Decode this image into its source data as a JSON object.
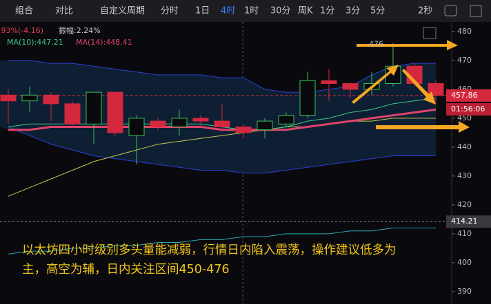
{
  "toolbar": {
    "items": [
      "组合",
      "对比",
      "自定义周期",
      "分时",
      "1日",
      "4时",
      "1时",
      "30分",
      "周K",
      "1分",
      "3分",
      "5分"
    ],
    "active": 5,
    "interval": "2秒"
  },
  "indicators": {
    "change": ".93%(-4.16)",
    "amplitude": "振幅:2.24%",
    "ma10": "MA(10):447.21",
    "ma14": "MA(14):448.41"
  },
  "annotation": [
    "以太坊四小时级别多头量能减弱，行情日内陷入震荡，操作建议低多为",
    "主，高空为辅，日内关注区间450-476"
  ],
  "chart_data": {
    "type": "candlestick",
    "candles": [
      {
        "open": 458,
        "close": 456,
        "high": 460,
        "low": 448
      },
      {
        "open": 456,
        "close": 458,
        "high": 461,
        "low": 452
      },
      {
        "open": 458,
        "close": 455,
        "high": 459,
        "low": 449
      },
      {
        "open": 455,
        "close": 448,
        "high": 456,
        "low": 447
      },
      {
        "open": 448,
        "close": 459,
        "high": 459,
        "low": 441
      },
      {
        "open": 459,
        "close": 445,
        "high": 459,
        "low": 444
      },
      {
        "open": 444,
        "close": 450,
        "high": 451,
        "low": 434
      },
      {
        "open": 449,
        "close": 447,
        "high": 450,
        "low": 446
      },
      {
        "open": 447,
        "close": 450,
        "high": 453,
        "low": 444
      },
      {
        "open": 450,
        "close": 449,
        "high": 451,
        "low": 447
      },
      {
        "open": 449,
        "close": 447,
        "high": 455,
        "low": 446
      },
      {
        "open": 447,
        "close": 445,
        "high": 448,
        "low": 443
      },
      {
        "open": 446,
        "close": 449,
        "high": 450,
        "low": 443
      },
      {
        "open": 448,
        "close": 451,
        "high": 452,
        "low": 447
      },
      {
        "open": 451,
        "close": 463,
        "high": 466,
        "low": 450
      },
      {
        "open": 463,
        "close": 462,
        "high": 467,
        "low": 456
      },
      {
        "open": 462,
        "close": 460,
        "high": 462,
        "low": 457
      },
      {
        "open": 460,
        "close": 462,
        "high": 466,
        "low": 458
      },
      {
        "open": 462,
        "close": 468,
        "high": 476,
        "low": 461
      },
      {
        "open": 468,
        "close": 462,
        "high": 469,
        "low": 461
      },
      {
        "open": 462,
        "close": 457.86,
        "high": 463,
        "low": 455
      }
    ],
    "up_color": "#3cc35a",
    "down_color": "#d4283e",
    "band": {
      "color": "#2b3fd6",
      "fill": "#0e1f33",
      "upper": [
        470,
        470,
        469,
        469,
        468,
        467,
        466,
        465,
        465,
        465,
        464,
        464,
        460,
        459,
        459,
        460,
        461,
        465,
        468,
        469,
        469
      ],
      "lower": [
        447,
        444,
        441,
        439,
        437,
        436,
        435,
        434,
        433,
        432,
        432,
        431,
        431,
        432,
        433,
        434,
        435,
        436,
        437,
        437,
        437
      ]
    },
    "lines": [
      {
        "color": "#c8c850",
        "width": 1,
        "values": [
          423,
          426,
          429,
          432,
          435,
          437,
          439,
          441,
          442,
          443,
          444,
          445,
          446,
          447,
          447,
          448,
          449,
          449,
          450,
          450,
          450
        ]
      },
      {
        "color": "#2aa8b8",
        "width": 1,
        "values": [
          403,
          404,
          404,
          405,
          405,
          406,
          406,
          407,
          407,
          408,
          408,
          409,
          409,
          410,
          410,
          410,
          411,
          411,
          412,
          412,
          412
        ]
      },
      {
        "color": "#3fc88a",
        "width": 1,
        "values": [
          447,
          448,
          448,
          448,
          448,
          448,
          448,
          448,
          448,
          448,
          447,
          446,
          446,
          447,
          449,
          450,
          452,
          453,
          455,
          456,
          457
        ]
      },
      {
        "color": "#e0436a",
        "width": 3,
        "values": [
          446,
          446,
          447,
          447,
          447,
          447,
          447,
          447,
          447,
          447,
          446,
          446,
          446,
          446,
          447,
          448,
          449,
          450,
          451,
          452,
          453
        ]
      }
    ],
    "ylim": [
      385.7,
      483.3
    ],
    "yticks": [
      390,
      400,
      410,
      420,
      430,
      440,
      450,
      460,
      470,
      480
    ],
    "last_price": 457.86,
    "countdown": "01:56:06",
    "ref_price": 414.21,
    "high_label": 476
  }
}
